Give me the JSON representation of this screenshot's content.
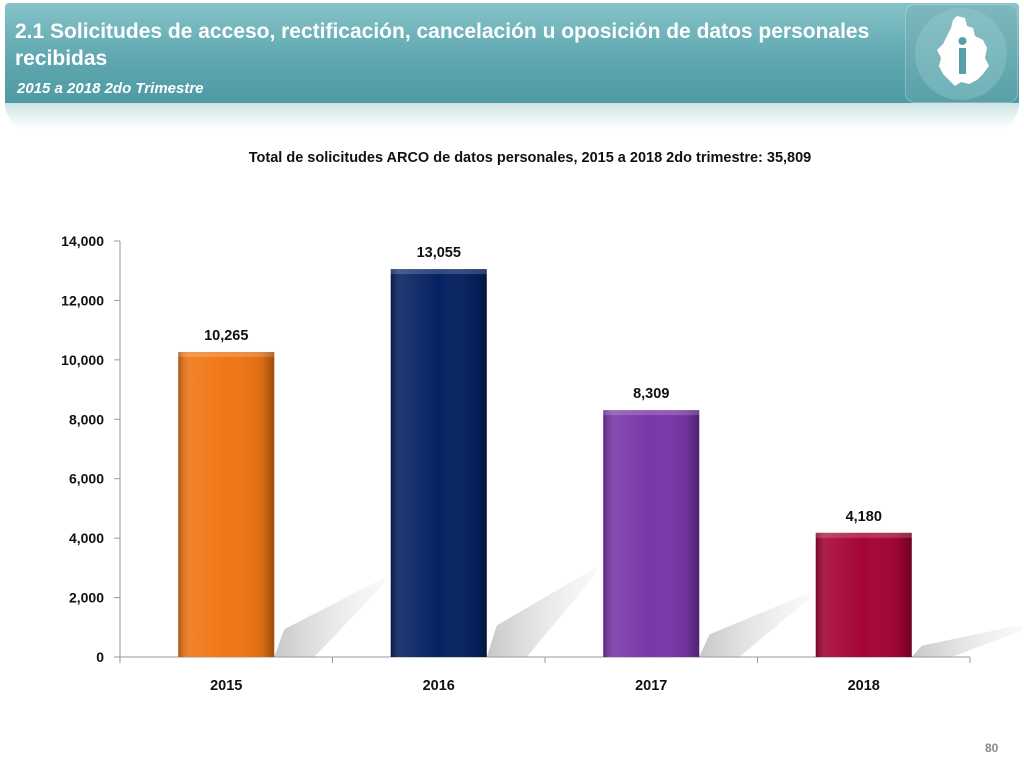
{
  "header": {
    "title": "2.1 Solicitudes de acceso, rectificación, cancelación u oposición de datos personales recibidas",
    "subtitle": "2015 a 2018 2do Trimestre",
    "logo_icon": "cdmx-map-logo-icon"
  },
  "page_number": "80",
  "chart_data": {
    "type": "bar",
    "title": "Total de solicitudes ARCO de datos personales, 2015 a 2018 2do trimestre: 35,809",
    "categories": [
      "2015",
      "2016",
      "2017",
      "2018"
    ],
    "values": [
      10265,
      13055,
      8309,
      4180
    ],
    "value_labels": [
      "10,265",
      "13,055",
      "8,309",
      "4,180"
    ],
    "colors": [
      "#f07614",
      "#062262",
      "#7a36a8",
      "#a50434"
    ],
    "ylim": [
      0,
      14000
    ],
    "yticks": [
      0,
      2000,
      4000,
      6000,
      8000,
      10000,
      12000,
      14000
    ],
    "ytick_labels": [
      "0",
      "2,000",
      "4,000",
      "6,000",
      "8,000",
      "10,000",
      "12,000",
      "14,000"
    ],
    "xlabel": "",
    "ylabel": "",
    "grid": false,
    "legend": "none"
  }
}
